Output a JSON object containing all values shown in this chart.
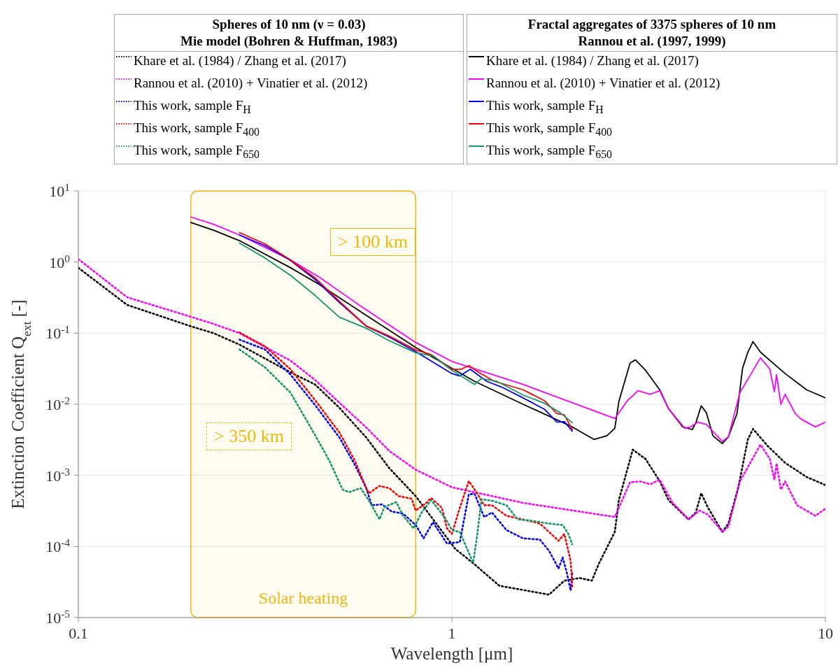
{
  "chart_data": {
    "type": "line",
    "xlabel": "Wavelength [μm]",
    "ylabel": "Extinction Coefficient Q$_{ext}$ [-]",
    "log": "xy",
    "grid": true,
    "legend": "top",
    "xlim": [
      0.1,
      10
    ],
    "xticks": [
      0.1,
      1,
      10
    ],
    "ylim": [
      1e-05,
      10
    ],
    "yticks": [
      {
        "value": 1e-05,
        "label": "10$^{-5}$"
      },
      {
        "value": 0.0001,
        "label": "10$^{-4}$"
      },
      {
        "value": 0.001,
        "label": "10$^{-3}$"
      },
      {
        "value": 0.01,
        "label": "10$^{-2}$"
      },
      {
        "value": 0.1,
        "label": "10$^{-1}$"
      },
      {
        "value": 1,
        "label": "10$^{0}$"
      },
      {
        "value": 10,
        "label": "10$^{1}$"
      }
    ],
    "bands": [
      {
        "axis": "x",
        "from": 0.2,
        "to": 0.8,
        "label": "Solar heating",
        "color": "#f5b50a"
      }
    ],
    "annotations": [
      "> 100 km",
      "> 350 km",
      "Spheres of 10 nm (ν = 0.03)\nMie model (Bohren & Huffman, 1983)",
      "Fractal aggregates of 3375 spheres of 10 nm\nRannou et al. (1997, 1999)"
    ],
    "series": [
      {
        "name": "Khare et al. (1984) / Zhang et al. (2017)",
        "color": "#000000",
        "line_style": "dotted",
        "x": [
          0.1,
          0.135,
          0.2,
          0.23,
          0.27,
          0.37,
          0.43,
          0.5,
          0.59,
          0.68,
          0.8,
          1.02,
          1.15,
          1.34,
          1.82,
          2.0,
          2.2,
          2.37,
          2.47,
          2.73,
          2.8,
          3.05,
          3.3,
          3.6,
          3.8,
          4.3,
          4.5,
          4.65,
          4.85,
          5.3,
          5.5,
          5.85,
          6.2,
          6.4,
          7.0,
          7.8,
          8.9,
          10
        ],
        "values": [
          0.83,
          0.25,
          0.125,
          0.1,
          0.069,
          0.028,
          0.019,
          0.0089,
          0.0034,
          0.00126,
          0.00051,
          9.3e-05,
          5.6e-05,
          2.8e-05,
          2.1e-05,
          3.3e-05,
          3.6e-05,
          3.3e-05,
          5.6e-05,
          0.00016,
          0.00045,
          0.0023,
          0.0017,
          0.00083,
          0.00045,
          0.00024,
          0.0003,
          0.00056,
          0.00035,
          0.00016,
          0.00021,
          0.00069,
          0.0032,
          0.0045,
          0.0026,
          0.0015,
          0.00095,
          0.00073
        ]
      },
      {
        "name": "Rannou et al. (2010) + Vinatier et al. (2012)",
        "color": "#ff00ff",
        "line_style": "dotted",
        "x": [
          0.1,
          0.135,
          0.2,
          0.23,
          0.27,
          0.37,
          0.43,
          0.5,
          0.59,
          0.68,
          0.8,
          1.0,
          1.55,
          2.73,
          3.0,
          3.2,
          3.4,
          3.6,
          3.9,
          4.3,
          4.6,
          4.85,
          5.3,
          5.5,
          5.9,
          6.7,
          7.1,
          7.3,
          7.4,
          7.6,
          7.8,
          8.4,
          9.4,
          10
        ],
        "values": [
          1.1,
          0.32,
          0.17,
          0.135,
          0.1,
          0.041,
          0.022,
          0.0105,
          0.0047,
          0.0022,
          0.0012,
          0.00068,
          0.00041,
          0.00026,
          0.0008,
          0.00082,
          0.00075,
          0.00087,
          0.00041,
          0.00024,
          0.00032,
          0.00028,
          0.00016,
          0.00019,
          0.00082,
          0.0027,
          0.0017,
          0.00087,
          0.00147,
          0.00063,
          0.00082,
          0.00038,
          0.00027,
          0.00034
        ]
      },
      {
        "name": "This work, sample F$_{H}$",
        "color": "#0000ff",
        "line_style": "dotted",
        "x": [
          0.27,
          0.316,
          0.37,
          0.43,
          0.5,
          0.55,
          0.59,
          0.61,
          0.65,
          0.69,
          0.74,
          0.8,
          0.84,
          0.89,
          0.97,
          1.05,
          1.11,
          1.15,
          1.22,
          1.28,
          1.4,
          1.55,
          1.72,
          1.82,
          1.93,
          1.98,
          2.03,
          2.08,
          2.1
        ],
        "values": [
          0.081,
          0.059,
          0.026,
          0.0098,
          0.0034,
          0.0014,
          0.00066,
          0.00038,
          0.00039,
          0.00031,
          0.00029,
          0.0002,
          0.00013,
          0.00022,
          0.00011,
          0.000115,
          0.00054,
          0.00055,
          0.00026,
          0.0003,
          0.00017,
          0.00013,
          0.000125,
          8.7e-05,
          4.9e-05,
          7e-05,
          4.3e-05,
          2.4e-05,
          4.3e-05
        ]
      },
      {
        "name": "This work, sample F$_{400}$",
        "color": "#ff0000",
        "line_style": "dotted",
        "x": [
          0.27,
          0.316,
          0.37,
          0.43,
          0.5,
          0.55,
          0.59,
          0.6,
          0.64,
          0.68,
          0.72,
          0.78,
          0.8,
          0.85,
          0.88,
          0.94,
          0.97,
          1.0,
          1.05,
          1.11,
          1.16,
          1.22,
          1.28,
          1.4,
          1.55,
          1.72,
          1.93,
          2.0,
          2.08,
          2.1
        ],
        "values": [
          0.102,
          0.065,
          0.031,
          0.0115,
          0.004,
          0.0016,
          0.00066,
          0.00056,
          0.00071,
          0.00066,
          0.00051,
          0.00047,
          0.00032,
          0.0004,
          0.00048,
          0.00035,
          0.00018,
          0.00015,
          0.00035,
          0.00083,
          0.00059,
          0.00038,
          0.00038,
          0.00027,
          0.00024,
          0.00021,
          0.00012,
          0.00015,
          6.2e-05,
          2.7e-05
        ]
      },
      {
        "name": "This work, sample F$_{650}$",
        "color": "#13976a",
        "line_style": "dotted",
        "x": [
          0.27,
          0.316,
          0.37,
          0.43,
          0.47,
          0.51,
          0.53,
          0.57,
          0.6,
          0.64,
          0.66,
          0.71,
          0.74,
          0.79,
          0.83,
          0.88,
          0.96,
          1.0,
          1.05,
          1.14,
          1.17,
          1.2,
          1.28,
          1.4,
          1.5,
          1.63,
          1.82,
          1.98,
          2.05,
          2.1
        ],
        "values": [
          0.059,
          0.033,
          0.0145,
          0.0037,
          0.0016,
          0.00063,
          0.00058,
          0.00066,
          0.00044,
          0.00024,
          0.00036,
          0.00042,
          0.00027,
          0.00018,
          0.0003,
          0.00045,
          0.00025,
          0.00017,
          0.00016,
          5.9e-05,
          0.00015,
          0.00046,
          0.00044,
          0.00038,
          0.00024,
          0.00023,
          0.00021,
          0.0002,
          0.00015,
          0.000107
        ]
      },
      {
        "name": "Khare et al. (1984) / Zhang et al. (2017)",
        "color": "#000000",
        "line_style": "solid",
        "x": [
          0.2,
          0.23,
          0.27,
          0.37,
          0.44,
          0.57,
          0.8,
          1.15,
          1.55,
          2.1,
          2.4,
          2.6,
          2.73,
          2.8,
          3.0,
          3.1,
          3.3,
          3.6,
          3.8,
          4.15,
          4.4,
          4.5,
          4.65,
          4.8,
          5.0,
          5.3,
          5.5,
          5.8,
          6.0,
          6.2,
          6.4,
          6.7,
          7.8,
          8.9,
          10
        ],
        "values": [
          3.6,
          2.8,
          2.0,
          0.83,
          0.49,
          0.2,
          0.063,
          0.021,
          0.01,
          0.0048,
          0.0032,
          0.0036,
          0.0046,
          0.011,
          0.038,
          0.042,
          0.03,
          0.016,
          0.0087,
          0.0048,
          0.0044,
          0.0055,
          0.0095,
          0.0076,
          0.0036,
          0.0028,
          0.0035,
          0.0074,
          0.032,
          0.054,
          0.076,
          0.054,
          0.027,
          0.016,
          0.0123
        ]
      },
      {
        "name": "Rannou et al. (2010) + Vinatier et al. (2012)",
        "color": "#ff00ff",
        "line_style": "solid",
        "x": [
          0.2,
          0.23,
          0.27,
          0.37,
          0.44,
          0.57,
          0.8,
          1.0,
          1.55,
          2.73,
          2.95,
          3.15,
          3.4,
          3.6,
          3.8,
          4.2,
          4.35,
          4.55,
          4.8,
          5.3,
          5.5,
          5.9,
          6.7,
          7.1,
          7.3,
          7.4,
          7.6,
          7.8,
          8.3,
          8.6,
          9.4,
          10
        ],
        "values": [
          4.3,
          3.4,
          2.4,
          1.07,
          0.62,
          0.24,
          0.074,
          0.04,
          0.019,
          0.0063,
          0.0112,
          0.0155,
          0.0138,
          0.0155,
          0.0087,
          0.0046,
          0.0048,
          0.0056,
          0.0052,
          0.003,
          0.0035,
          0.0144,
          0.045,
          0.031,
          0.015,
          0.026,
          0.01,
          0.0138,
          0.0074,
          0.0062,
          0.0048,
          0.0056
        ]
      },
      {
        "name": "This work, sample F$_{H}$",
        "color": "#0000ff",
        "line_style": "solid",
        "x": [
          0.27,
          0.316,
          0.37,
          0.43,
          0.5,
          0.59,
          0.68,
          0.8,
          1.0,
          1.05,
          1.12,
          1.24,
          1.36,
          1.55,
          1.77,
          1.91,
          2.0,
          2.1
        ],
        "values": [
          2.4,
          1.7,
          1.05,
          0.57,
          0.27,
          0.125,
          0.088,
          0.055,
          0.027,
          0.025,
          0.031,
          0.021,
          0.0174,
          0.0123,
          0.0085,
          0.0056,
          0.0057,
          0.0042
        ]
      },
      {
        "name": "This work, sample F$_{400}$",
        "color": "#ff0000",
        "line_style": "solid",
        "x": [
          0.27,
          0.316,
          0.37,
          0.43,
          0.5,
          0.59,
          0.68,
          0.8,
          0.88,
          1.0,
          1.06,
          1.11,
          1.18,
          1.3,
          1.55,
          1.77,
          1.91,
          2.0,
          2.1
        ],
        "values": [
          2.6,
          1.8,
          1.07,
          0.6,
          0.28,
          0.126,
          0.091,
          0.058,
          0.05,
          0.031,
          0.031,
          0.035,
          0.028,
          0.021,
          0.016,
          0.0112,
          0.0074,
          0.0071,
          0.0044
        ]
      },
      {
        "name": "This work, sample F$_{650}$",
        "color": "#13976a",
        "line_style": "solid",
        "x": [
          0.27,
          0.316,
          0.37,
          0.43,
          0.5,
          0.59,
          0.68,
          0.8,
          0.89,
          1.0,
          1.15,
          1.2,
          1.32,
          1.55,
          1.77,
          1.95,
          2.1
        ],
        "values": [
          1.85,
          1.14,
          0.65,
          0.34,
          0.167,
          0.117,
          0.078,
          0.053,
          0.048,
          0.03,
          0.019,
          0.023,
          0.021,
          0.0135,
          0.0103,
          0.0076,
          0.0055
        ]
      }
    ]
  }
}
